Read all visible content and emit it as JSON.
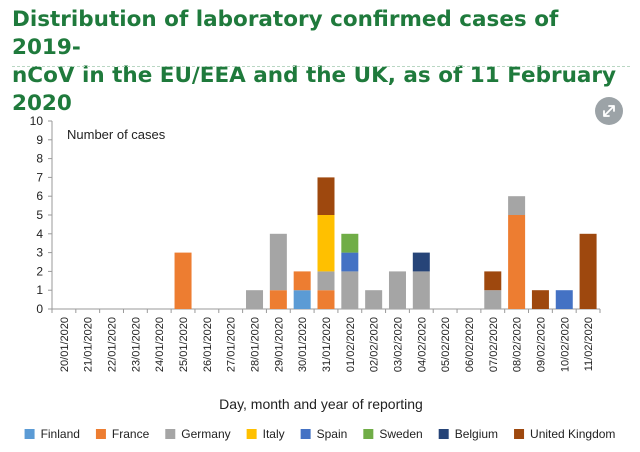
{
  "header": {
    "title_line1": "Distribution of laboratory confirmed cases of 2019-",
    "title_line2": "nCoV in the EU/EEA and the UK, as of 11 February 2020"
  },
  "chart_data": {
    "type": "bar",
    "stacked": true,
    "title": "Distribution of laboratory confirmed cases of 2019-nCoV in the EU/EEA and the UK, as of 11 February 2020",
    "ylabel": "Number of cases",
    "xlabel": "Day, month and year of reporting",
    "ylim": [
      0,
      10
    ],
    "yticks": [
      0,
      1,
      2,
      3,
      4,
      5,
      6,
      7,
      8,
      9,
      10
    ],
    "grid": false,
    "legend_position": "bottom",
    "categories": [
      "20/01/2020",
      "21/01/2020",
      "22/01/2020",
      "23/01/2020",
      "24/01/2020",
      "25/01/2020",
      "26/01/2020",
      "27/01/2020",
      "28/01/2020",
      "29/01/2020",
      "30/01/2020",
      "31/01/2020",
      "01/02/2020",
      "02/02/2020",
      "03/02/2020",
      "04/02/2020",
      "05/02/2020",
      "06/02/2020",
      "07/02/2020",
      "08/02/2020",
      "09/02/2020",
      "10/02/2020",
      "11/02/2020"
    ],
    "series": [
      {
        "name": "Finland",
        "color": "#5b9bd5",
        "values": [
          0,
          0,
          0,
          0,
          0,
          0,
          0,
          0,
          0,
          0,
          1,
          0,
          0,
          0,
          0,
          0,
          0,
          0,
          0,
          0,
          0,
          0,
          0
        ]
      },
      {
        "name": "France",
        "color": "#ed7d31",
        "values": [
          0,
          0,
          0,
          0,
          0,
          3,
          0,
          0,
          0,
          1,
          1,
          1,
          0,
          0,
          0,
          0,
          0,
          0,
          0,
          5,
          0,
          0,
          0
        ]
      },
      {
        "name": "Germany",
        "color": "#a5a5a5",
        "values": [
          0,
          0,
          0,
          0,
          0,
          0,
          0,
          0,
          1,
          3,
          0,
          1,
          2,
          1,
          2,
          2,
          0,
          0,
          1,
          1,
          0,
          0,
          0
        ]
      },
      {
        "name": "Italy",
        "color": "#ffc000",
        "values": [
          0,
          0,
          0,
          0,
          0,
          0,
          0,
          0,
          0,
          0,
          0,
          3,
          0,
          0,
          0,
          0,
          0,
          0,
          0,
          0,
          0,
          0,
          0
        ]
      },
      {
        "name": "Spain",
        "color": "#4472c4",
        "values": [
          0,
          0,
          0,
          0,
          0,
          0,
          0,
          0,
          0,
          0,
          0,
          0,
          1,
          0,
          0,
          0,
          0,
          0,
          0,
          0,
          0,
          1,
          0
        ]
      },
      {
        "name": "Sweden",
        "color": "#70ad47",
        "values": [
          0,
          0,
          0,
          0,
          0,
          0,
          0,
          0,
          0,
          0,
          0,
          0,
          1,
          0,
          0,
          0,
          0,
          0,
          0,
          0,
          0,
          0,
          0
        ]
      },
      {
        "name": "Belgium",
        "color": "#264478",
        "values": [
          0,
          0,
          0,
          0,
          0,
          0,
          0,
          0,
          0,
          0,
          0,
          0,
          0,
          0,
          0,
          1,
          0,
          0,
          0,
          0,
          0,
          0,
          0
        ]
      },
      {
        "name": "United Kingdom",
        "color": "#9e480e",
        "values": [
          0,
          0,
          0,
          0,
          0,
          0,
          0,
          0,
          0,
          0,
          0,
          2,
          0,
          0,
          0,
          0,
          0,
          0,
          1,
          0,
          1,
          0,
          4
        ]
      }
    ]
  }
}
